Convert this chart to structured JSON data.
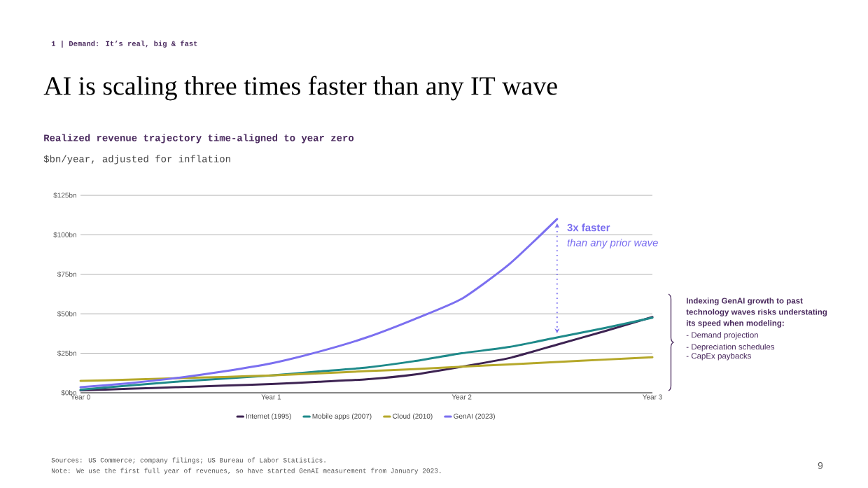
{
  "chart_data": {
    "type": "line",
    "title": "AI is scaling three times faster than any IT wave",
    "subtitle": "Realized revenue trajectory time-aligned to year zero",
    "ylabel": "$bn/year, adjusted for inflation",
    "categories": [
      "Year 0",
      null,
      null,
      null,
      "Year 1",
      null,
      null,
      null,
      "Year 2",
      null,
      null,
      null,
      "Year 3"
    ],
    "ylim": [
      0,
      125
    ],
    "yticks": [
      {
        "value": 0,
        "label": "$0bn"
      },
      {
        "value": 25,
        "label": "$25bn"
      },
      {
        "value": 50,
        "label": "$50bn"
      },
      {
        "value": 75,
        "label": "$75bn"
      },
      {
        "value": 100,
        "label": "$100bn"
      },
      {
        "value": 125,
        "label": "$125bn"
      }
    ],
    "grid": "y",
    "legend": "bottom",
    "series": [
      {
        "name": "Internet (1995)",
        "color": "#3d2352",
        "values": [
          1.5,
          2.5,
          3.5,
          4.5,
          5.5,
          7,
          8.5,
          11.5,
          16.5,
          22,
          30.5,
          39,
          48
        ]
      },
      {
        "name": "Mobile apps (2007)",
        "color": "#1f8a8a",
        "values": [
          2,
          4.5,
          7,
          9,
          11,
          13.5,
          16,
          20,
          25,
          29,
          35,
          41,
          47.5
        ]
      },
      {
        "name": "Cloud (2010)",
        "color": "#b5a82a",
        "values": [
          7.5,
          8.3,
          9.2,
          10,
          11,
          12.3,
          13.7,
          15,
          16.5,
          18,
          19.5,
          21,
          22.5
        ]
      },
      {
        "name": "GenAI (2023)",
        "color": "#7b6ff0",
        "values": [
          3.5,
          6,
          9.3,
          13.5,
          18.6,
          26,
          35,
          46.5,
          59.5,
          81.5,
          110,
          null,
          null
        ]
      }
    ],
    "annotations": [
      "1 | Demand: It’s real, big & fast",
      "3x faster",
      "than any prior wave",
      "Indexing GenAI growth to past technology waves risks understating its speed when modeling:",
      "- Demand projection",
      "- Depreciation schedules",
      "- CapEx paybacks",
      "Sources: US Commerce; company filings; US Bureau of Labor Statistics.",
      "Note: We use the first full year of revenues, so have started GenAI measurement from January 2023.",
      "9"
    ]
  }
}
